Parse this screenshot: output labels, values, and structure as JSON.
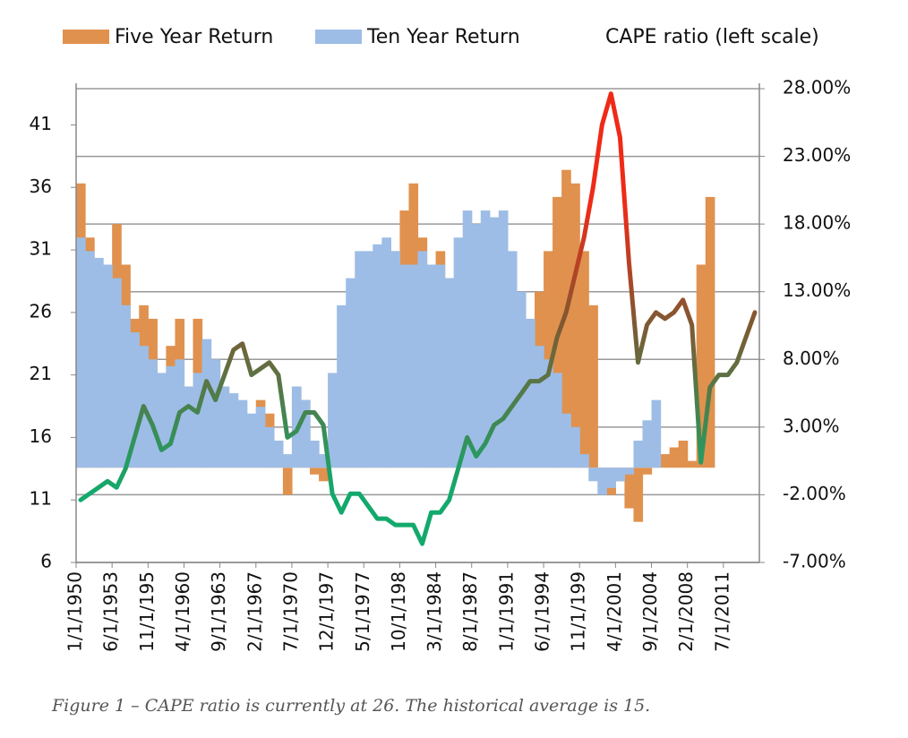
{
  "chart_data": {
    "type": "bar",
    "caption": "Figure 1 – CAPE ratio is currently at 26. The historical average is 15.",
    "legend": "top",
    "grid": true,
    "categories": [
      "1/1/1950",
      null,
      null,
      null,
      "6/1/1953",
      null,
      null,
      null,
      "11/1/195",
      null,
      null,
      null,
      "4/1/1960",
      null,
      null,
      null,
      "9/1/1963",
      null,
      null,
      null,
      "2/1/1967",
      null,
      null,
      null,
      "7/1/1970",
      null,
      null,
      null,
      "12/1/197",
      null,
      null,
      null,
      "5/1/1977",
      null,
      null,
      null,
      "10/1/198",
      null,
      null,
      null,
      "3/1/1984",
      null,
      null,
      null,
      "8/1/1987",
      null,
      null,
      null,
      "1/1/1991",
      null,
      null,
      null,
      "6/1/1994",
      null,
      null,
      null,
      "11/1/199",
      null,
      null,
      null,
      "4/1/2001",
      null,
      null,
      null,
      "9/1/2004",
      null,
      null,
      null,
      "2/1/2008",
      null,
      null,
      null,
      "7/1/2011",
      null,
      null,
      null
    ],
    "ylim": [
      6,
      43.9
    ],
    "yticks": [
      6,
      11,
      16,
      21,
      26,
      31,
      36,
      41
    ],
    "y2lim": [
      -7,
      28
    ],
    "y2ticks": [
      {
        "value": -7,
        "label": "-7.00%"
      },
      {
        "value": -2,
        "label": "-2.00%"
      },
      {
        "value": 3,
        "label": "3.00%"
      },
      {
        "value": 8,
        "label": "8.00%"
      },
      {
        "value": 13,
        "label": "13.00%"
      },
      {
        "value": 18,
        "label": "18.00%"
      },
      {
        "value": 23,
        "label": "23.00%"
      },
      {
        "value": 28,
        "label": "28.00%"
      }
    ],
    "series": [
      {
        "name": "Five Year Return",
        "color": "#e0914e",
        "axis": "y2",
        "values": [
          21,
          17,
          12,
          14,
          18,
          15,
          11,
          12,
          11,
          6,
          9,
          11,
          6,
          11,
          7,
          4,
          2,
          4,
          4,
          3,
          5,
          4,
          1,
          -2,
          6,
          5,
          -0.5,
          -1,
          2,
          4,
          6,
          10,
          12,
          13,
          14,
          16,
          19,
          21,
          17,
          15,
          16,
          14,
          13,
          12,
          13,
          14,
          12,
          9,
          8,
          10,
          11,
          13,
          16,
          20,
          22,
          21,
          16,
          12,
          -1,
          -2,
          -1,
          -3,
          -4,
          -0.5,
          1,
          1,
          1.5,
          2,
          0.5,
          15,
          20,
          null,
          null,
          null,
          null,
          null
        ]
      },
      {
        "name": "Ten Year Return",
        "color": "#9dbde6",
        "axis": "y2",
        "values": [
          17,
          16,
          15.5,
          15,
          14,
          12,
          10,
          9,
          8,
          7,
          7.5,
          8,
          6,
          7,
          9.5,
          8,
          6,
          5.5,
          5,
          4,
          4.5,
          3,
          2,
          1,
          6,
          5,
          2,
          1,
          7,
          12,
          14,
          16,
          16,
          16.5,
          17,
          16,
          15,
          15,
          16,
          15,
          15,
          14,
          17,
          19,
          18,
          19,
          18.5,
          19,
          16,
          13,
          11,
          9,
          8,
          7,
          4,
          3,
          1,
          -1,
          -2,
          -1.5,
          -1,
          -0.5,
          2,
          3.5,
          5,
          null,
          null,
          null,
          null,
          null,
          null,
          null,
          null,
          null,
          null,
          null
        ]
      },
      {
        "name": "CAPE ratio (left scale)",
        "type": "line",
        "colors": [
          "#13a96c",
          "#7d5a32",
          "#ee2b17"
        ],
        "values": [
          11,
          11.5,
          12,
          12.5,
          12,
          13.5,
          16,
          18.5,
          17,
          15,
          15.5,
          18,
          18.5,
          18,
          20.5,
          19,
          21,
          23,
          23.5,
          21,
          21.5,
          22,
          21,
          16,
          16.5,
          18,
          18,
          17,
          11.5,
          10,
          11.5,
          11.5,
          10.5,
          9.5,
          9.5,
          9,
          9,
          9,
          7.5,
          10,
          10,
          11,
          13.5,
          16,
          14.5,
          15.5,
          17,
          17.5,
          18.5,
          19.5,
          20.5,
          20.5,
          21,
          24,
          26,
          29,
          32,
          36,
          41,
          43.5,
          40,
          30,
          22,
          25,
          26,
          25.5,
          26,
          27,
          25,
          14,
          20,
          21,
          21,
          22,
          24,
          26
        ]
      }
    ]
  }
}
